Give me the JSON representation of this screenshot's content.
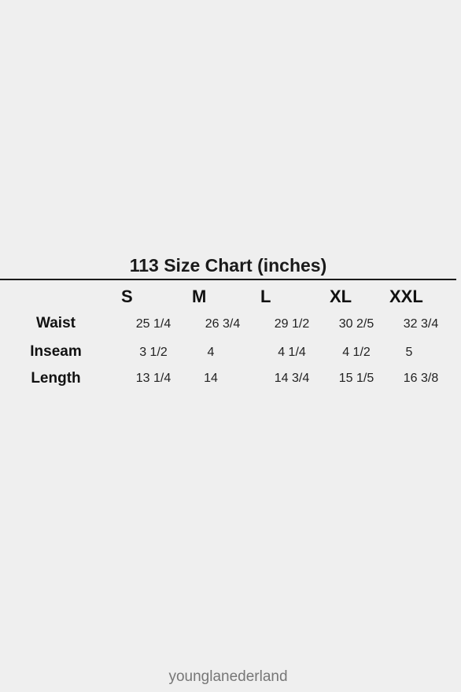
{
  "title": "113 Size Chart (inches)",
  "columns": [
    "S",
    "M",
    "L",
    "XL",
    "XXL"
  ],
  "rows": [
    {
      "label": "Waist",
      "values": [
        "25 1/4",
        "26 3/4",
        "29 1/2",
        "30 2/5",
        "32 3/4"
      ]
    },
    {
      "label": "Inseam",
      "values": [
        "3 1/2",
        "4",
        "4 1/4",
        "4 1/2",
        "5"
      ]
    },
    {
      "label": "Length",
      "values": [
        "13 1/4",
        "14",
        "14 3/4",
        "15 1/5",
        "16 3/8"
      ]
    }
  ],
  "footer": "younglanederland"
}
